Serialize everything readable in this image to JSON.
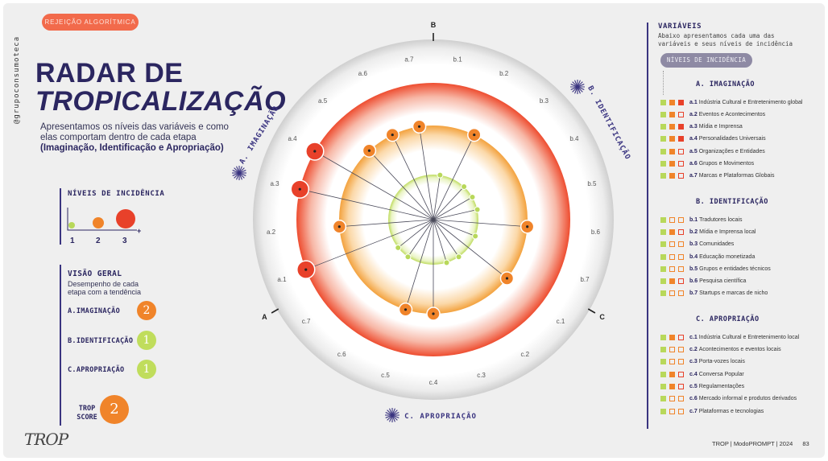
{
  "tag": "REJEIÇÃO ALGORÍTMICA",
  "side_text": "@grupoconsumoteca",
  "title_line1": "RADAR DE",
  "title_line2": "TROPICALIZAÇÃO",
  "intro_text": "Apresentamos os níveis das variáveis e como elas comportam dentro de cada etapa",
  "intro_bold": "(Imaginação, Identificação e Apropriação)",
  "niveis": {
    "title": "NÍVEIS DE INCIDÊNCIA",
    "labels": [
      "1",
      "2",
      "3"
    ],
    "plus": "+",
    "colors": [
      "#b8d85a",
      "#f0842a",
      "#e8412a"
    ]
  },
  "visao": {
    "title": "VISÃO GERAL",
    "subtitle": "Desempenho de cada etapa com a tendência",
    "rows": [
      {
        "label": "A.IMAGINAÇÃO",
        "value": "2"
      },
      {
        "label": "B.IDENTIFICAÇÃO",
        "value": "1"
      },
      {
        "label": "C.APROPRIAÇÃO",
        "value": "1"
      }
    ],
    "score_label": "TROP SCORE",
    "score_value": "2"
  },
  "logo": "TROP",
  "footer": {
    "text": "TROP | ModoPROMPT | 2024",
    "page": "83"
  },
  "chart_data": {
    "type": "radar",
    "levels": [
      1,
      2,
      3
    ],
    "sections": [
      {
        "letter": "A",
        "name": "A. IMAGINAÇÃO",
        "icon": "sunburst-icon"
      },
      {
        "letter": "B",
        "name": "B. IDENTIFICAÇÃO",
        "icon": "sunburst-icon"
      },
      {
        "letter": "C",
        "name": "C. APROPRIAÇÃO",
        "icon": "sunburst-icon"
      }
    ],
    "axes": [
      {
        "id": "b.1",
        "level": 1
      },
      {
        "id": "b.2",
        "level": 2
      },
      {
        "id": "b.3",
        "level": 1
      },
      {
        "id": "b.4",
        "level": 1
      },
      {
        "id": "b.5",
        "level": 1
      },
      {
        "id": "b.6",
        "level": 2
      },
      {
        "id": "b.7",
        "level": 1
      },
      {
        "id": "c.1",
        "level": 2
      },
      {
        "id": "c.2",
        "level": 1
      },
      {
        "id": "c.3",
        "level": 1
      },
      {
        "id": "c.4",
        "level": 2
      },
      {
        "id": "c.5",
        "level": 2
      },
      {
        "id": "c.6",
        "level": 1
      },
      {
        "id": "c.7",
        "level": 1
      },
      {
        "id": "a.1",
        "level": 3
      },
      {
        "id": "a.2",
        "level": 2
      },
      {
        "id": "a.3",
        "level": 3
      },
      {
        "id": "a.4",
        "level": 3
      },
      {
        "id": "a.5",
        "level": 2
      },
      {
        "id": "a.6",
        "level": 2
      },
      {
        "id": "a.7",
        "level": 2
      }
    ]
  },
  "variaveis": {
    "title": "VARIÁVEIS",
    "subtitle": "Abaixo apresentamos cada uma das variáveis e seus níveis de incidência",
    "pill": "NÍVEIS DE INCIDÊNCIA",
    "sections": [
      {
        "title": "A. IMAGINAÇÃO",
        "items": [
          {
            "code": "a.1",
            "label": "Indústria Cultural e Entretenimento global",
            "level": 3
          },
          {
            "code": "a.2",
            "label": "Eventos e Acontecimentos",
            "level": 2
          },
          {
            "code": "a.3",
            "label": "Mídia e Imprensa",
            "level": 3
          },
          {
            "code": "a.4",
            "label": "Personalidades Universais",
            "level": 3
          },
          {
            "code": "a.5",
            "label": "Organizações e Entidades",
            "level": 2
          },
          {
            "code": "a.6",
            "label": "Grupos e Movimentos",
            "level": 2
          },
          {
            "code": "a.7",
            "label": "Marcas e Plataformas Globais",
            "level": 2
          }
        ]
      },
      {
        "title": "B. IDENTIFICAÇÃO",
        "items": [
          {
            "code": "b.1",
            "label": "Tradutores locais",
            "level": 1
          },
          {
            "code": "b.2",
            "label": "Mídia e Imprensa local",
            "level": 2
          },
          {
            "code": "b.3",
            "label": "Comunidades",
            "level": 1
          },
          {
            "code": "b.4",
            "label": "Educação monetizada",
            "level": 1
          },
          {
            "code": "b.5",
            "label": "Grupos e entidades técnicos",
            "level": 1
          },
          {
            "code": "b.6",
            "label": "Pesquisa científica",
            "level": 2
          },
          {
            "code": "b.7",
            "label": "Startups e marcas de nicho",
            "level": 1
          }
        ]
      },
      {
        "title": "C. APROPRIAÇÃO",
        "items": [
          {
            "code": "c.1",
            "label": "Indústria Cultural e Entretenimento local",
            "level": 2
          },
          {
            "code": "c.2",
            "label": "Acontecimentos e eventos locais",
            "level": 1
          },
          {
            "code": "c.3",
            "label": "Porta-vozes locais",
            "level": 1
          },
          {
            "code": "c.4",
            "label": "Conversa Popular",
            "level": 2
          },
          {
            "code": "c.5",
            "label": "Regulamentações",
            "level": 2
          },
          {
            "code": "c.6",
            "label": "Mercado informal e produtos derivados",
            "level": 1
          },
          {
            "code": "c.7",
            "label": "Plataformas e tecnologias",
            "level": 1
          }
        ]
      }
    ]
  }
}
